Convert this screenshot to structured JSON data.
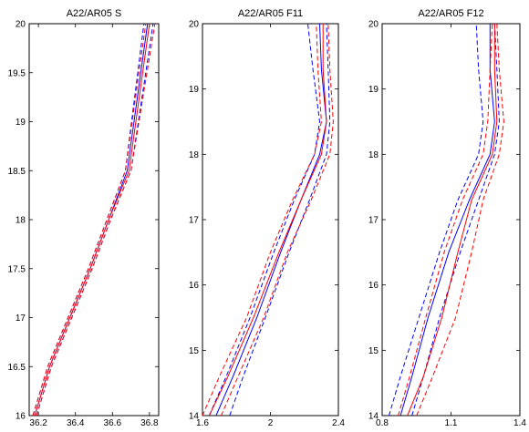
{
  "chart_data": [
    {
      "type": "line",
      "title": "A22/AR05 S",
      "xlim": [
        36.15,
        36.85
      ],
      "ylim": [
        16,
        20
      ],
      "xticks": [
        "36.2",
        "36.4",
        "36.6",
        "36.8"
      ],
      "yticks": [
        "16",
        "16.5",
        "17",
        "17.5",
        "18",
        "18.5",
        "19",
        "19.5",
        "20"
      ],
      "series": [
        {
          "color": "#0000ff",
          "dash": false,
          "x": [
            36.18,
            36.26,
            36.37,
            36.48,
            36.58,
            36.68,
            36.79
          ],
          "y": [
            16.0,
            16.5,
            17.0,
            17.5,
            18.0,
            18.5,
            20.0
          ]
        },
        {
          "color": "#0000ff",
          "dash": true,
          "x": [
            36.17,
            36.25,
            36.36,
            36.47,
            36.57,
            36.67,
            36.77
          ],
          "y": [
            16.0,
            16.5,
            17.0,
            17.5,
            18.0,
            18.5,
            20.0
          ]
        },
        {
          "color": "#0000ff",
          "dash": true,
          "x": [
            36.19,
            36.27,
            36.38,
            36.49,
            36.59,
            36.7,
            36.82
          ],
          "y": [
            16.0,
            16.5,
            17.0,
            17.5,
            18.0,
            18.5,
            20.0
          ]
        },
        {
          "color": "#ff0000",
          "dash": false,
          "x": [
            36.18,
            36.26,
            36.37,
            36.48,
            36.58,
            36.69,
            36.8
          ],
          "y": [
            16.0,
            16.5,
            17.0,
            17.5,
            18.0,
            18.5,
            20.0
          ]
        },
        {
          "color": "#ff0000",
          "dash": true,
          "x": [
            36.17,
            36.25,
            36.36,
            36.47,
            36.57,
            36.67,
            36.78
          ],
          "y": [
            16.0,
            16.5,
            17.0,
            17.5,
            18.0,
            18.5,
            20.0
          ]
        },
        {
          "color": "#ff0000",
          "dash": true,
          "x": [
            36.19,
            36.27,
            36.38,
            36.49,
            36.59,
            36.7,
            36.83
          ],
          "y": [
            16.0,
            16.5,
            17.0,
            17.5,
            18.0,
            18.5,
            20.0
          ]
        }
      ]
    },
    {
      "type": "line",
      "title": "A22/AR05 F11",
      "xlim": [
        1.6,
        2.4
      ],
      "ylim": [
        14,
        20
      ],
      "xticks": [
        "1.6",
        "2",
        "2.4"
      ],
      "yticks": [
        "14",
        "15",
        "16",
        "17",
        "18",
        "19",
        "20"
      ],
      "series": [
        {
          "color": "#0000ff",
          "dash": false,
          "x": [
            1.68,
            1.78,
            1.92,
            2.06,
            2.18,
            2.29,
            2.33,
            2.3,
            2.29
          ],
          "y": [
            14.0,
            14.6,
            15.5,
            16.5,
            17.3,
            18.0,
            18.5,
            19.3,
            20.0
          ]
        },
        {
          "color": "#0000ff",
          "dash": true,
          "x": [
            1.64,
            1.74,
            1.88,
            2.02,
            2.14,
            2.26,
            2.29,
            2.25,
            2.22
          ],
          "y": [
            14.0,
            14.6,
            15.5,
            16.5,
            17.3,
            18.0,
            18.5,
            19.3,
            20.0
          ]
        },
        {
          "color": "#0000ff",
          "dash": true,
          "x": [
            1.76,
            1.84,
            1.97,
            2.11,
            2.23,
            2.33,
            2.35,
            2.34,
            2.33
          ],
          "y": [
            14.0,
            14.6,
            15.5,
            16.5,
            17.3,
            18.0,
            18.5,
            19.3,
            20.0
          ]
        },
        {
          "color": "#ff0000",
          "dash": false,
          "x": [
            1.64,
            1.75,
            1.9,
            2.05,
            2.18,
            2.3,
            2.33,
            2.31,
            2.31
          ],
          "y": [
            14.0,
            14.6,
            15.5,
            16.5,
            17.3,
            18.0,
            18.5,
            19.3,
            20.0
          ]
        },
        {
          "color": "#ff0000",
          "dash": true,
          "x": [
            1.6,
            1.7,
            1.86,
            2.0,
            2.13,
            2.26,
            2.3,
            2.28,
            2.27
          ],
          "y": [
            14.0,
            14.6,
            15.5,
            16.5,
            17.3,
            18.0,
            18.5,
            19.3,
            20.0
          ]
        },
        {
          "color": "#ff0000",
          "dash": true,
          "x": [
            1.71,
            1.81,
            1.96,
            2.1,
            2.24,
            2.35,
            2.37,
            2.35,
            2.34
          ],
          "y": [
            14.0,
            14.6,
            15.5,
            16.5,
            17.3,
            18.0,
            18.5,
            19.3,
            20.0
          ]
        }
      ]
    },
    {
      "type": "line",
      "title": "A22/AR05 F12",
      "xlim": [
        0.8,
        1.4
      ],
      "ylim": [
        14,
        20
      ],
      "xticks": [
        "0.8",
        "1.1",
        "1.4"
      ],
      "yticks": [
        "14",
        "15",
        "16",
        "17",
        "18",
        "19",
        "20"
      ],
      "series": [
        {
          "color": "#0000ff",
          "dash": false,
          "x": [
            0.88,
            0.93,
            1.0,
            1.09,
            1.18,
            1.27,
            1.29,
            1.27,
            1.27
          ],
          "y": [
            14.0,
            14.6,
            15.5,
            16.5,
            17.3,
            18.0,
            18.5,
            19.3,
            20.0
          ]
        },
        {
          "color": "#0000ff",
          "dash": true,
          "x": [
            0.83,
            0.88,
            0.96,
            1.05,
            1.13,
            1.22,
            1.24,
            1.22,
            1.21
          ],
          "y": [
            14.0,
            14.6,
            15.5,
            16.5,
            17.3,
            18.0,
            18.5,
            19.3,
            20.0
          ]
        },
        {
          "color": "#0000ff",
          "dash": true,
          "x": [
            0.93,
            0.98,
            1.05,
            1.14,
            1.22,
            1.29,
            1.31,
            1.3,
            1.29
          ],
          "y": [
            14.0,
            14.6,
            15.5,
            16.5,
            17.3,
            18.0,
            18.5,
            19.3,
            20.0
          ]
        },
        {
          "color": "#ff0000",
          "dash": false,
          "x": [
            0.91,
            0.98,
            1.06,
            1.13,
            1.19,
            1.28,
            1.3,
            1.29,
            1.29
          ],
          "y": [
            14.0,
            14.6,
            15.5,
            16.5,
            17.3,
            18.0,
            18.5,
            19.3,
            20.0
          ]
        },
        {
          "color": "#ff0000",
          "dash": true,
          "x": [
            0.87,
            0.92,
            0.99,
            1.07,
            1.15,
            1.24,
            1.26,
            1.27,
            1.28
          ],
          "y": [
            14.0,
            14.6,
            15.5,
            16.5,
            17.3,
            18.0,
            18.5,
            19.3,
            20.0
          ]
        },
        {
          "color": "#ff0000",
          "dash": true,
          "x": [
            0.95,
            1.02,
            1.12,
            1.19,
            1.24,
            1.31,
            1.33,
            1.31,
            1.3
          ],
          "y": [
            14.0,
            14.6,
            15.5,
            16.5,
            17.3,
            18.0,
            18.5,
            19.3,
            20.0
          ]
        }
      ]
    }
  ]
}
